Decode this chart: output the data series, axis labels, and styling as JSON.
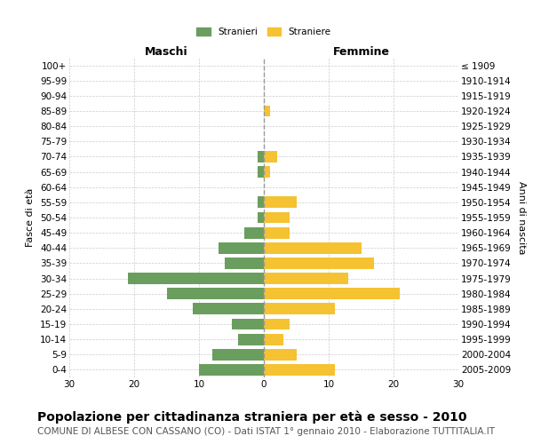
{
  "age_groups": [
    "100+",
    "95-99",
    "90-94",
    "85-89",
    "80-84",
    "75-79",
    "70-74",
    "65-69",
    "60-64",
    "55-59",
    "50-54",
    "45-49",
    "40-44",
    "35-39",
    "30-34",
    "25-29",
    "20-24",
    "15-19",
    "10-14",
    "5-9",
    "0-4"
  ],
  "birth_years": [
    "≤ 1909",
    "1910-1914",
    "1915-1919",
    "1920-1924",
    "1925-1929",
    "1930-1934",
    "1935-1939",
    "1940-1944",
    "1945-1949",
    "1950-1954",
    "1955-1959",
    "1960-1964",
    "1965-1969",
    "1970-1974",
    "1975-1979",
    "1980-1984",
    "1985-1989",
    "1990-1994",
    "1995-1999",
    "2000-2004",
    "2005-2009"
  ],
  "males": [
    0,
    0,
    0,
    0,
    0,
    0,
    1,
    1,
    0,
    1,
    1,
    3,
    7,
    6,
    21,
    15,
    11,
    5,
    4,
    8,
    10
  ],
  "females": [
    0,
    0,
    0,
    1,
    0,
    0,
    2,
    1,
    0,
    5,
    4,
    4,
    15,
    17,
    13,
    21,
    11,
    4,
    3,
    5,
    11
  ],
  "male_color": "#6a9e5e",
  "female_color": "#f5c232",
  "background_color": "#ffffff",
  "grid_color": "#cccccc",
  "title": "Popolazione per cittadinanza straniera per età e sesso - 2010",
  "subtitle": "COMUNE DI ALBESE CON CASSANO (CO) - Dati ISTAT 1° gennaio 2010 - Elaborazione TUTTITALIA.IT",
  "xlabel_left": "Maschi",
  "xlabel_right": "Femmine",
  "ylabel_left": "Fasce di età",
  "ylabel_right": "Anni di nascita",
  "legend_male": "Stranieri",
  "legend_female": "Straniere",
  "xlim": 30,
  "title_fontsize": 10,
  "subtitle_fontsize": 7.5,
  "header_fontsize": 9,
  "axis_label_fontsize": 8,
  "tick_fontsize": 7.5
}
